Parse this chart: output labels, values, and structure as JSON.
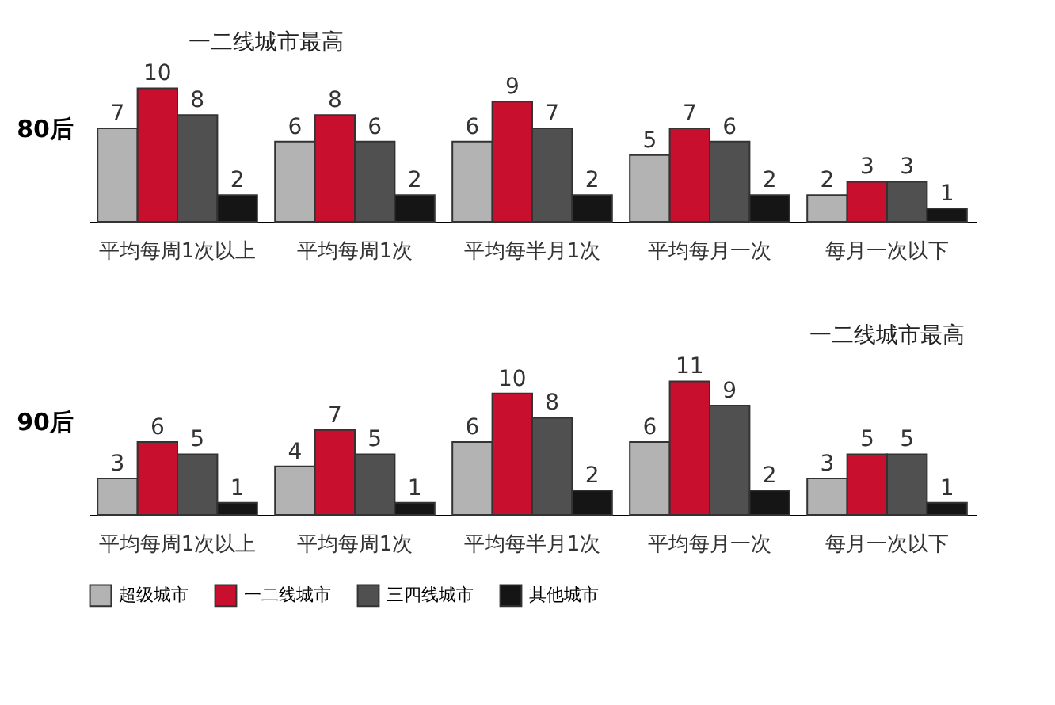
{
  "chart_data": [
    {
      "type": "bar",
      "ylabel": "80后",
      "categories": [
        "平均每周1次以上",
        "平均每周1次",
        "平均每半月1次",
        "平均每月一次",
        "每月一次以下"
      ],
      "series": [
        {
          "color": "#b3b3b3",
          "values": [
            7,
            6,
            6,
            5,
            2
          ]
        },
        {
          "color": "#c8102e",
          "values": [
            10,
            8,
            9,
            7,
            3
          ]
        },
        {
          "color": "#505050",
          "values": [
            8,
            6,
            7,
            6,
            3
          ]
        },
        {
          "color": "#151515",
          "values": [
            2,
            2,
            2,
            2,
            1
          ]
        }
      ],
      "data_labels": true,
      "legend": false,
      "annotations": [
        "一二线城市最高"
      ]
    },
    {
      "type": "bar",
      "ylabel": "90后",
      "categories": [
        "平均每周1次以上",
        "平均每周1次",
        "平均每半月1次",
        "平均每月一次",
        "每月一次以下"
      ],
      "series": [
        {
          "name": "超级城市",
          "color": "#b3b3b3",
          "values": [
            3,
            4,
            6,
            6,
            3
          ]
        },
        {
          "name": "一二线城市",
          "color": "#c8102e",
          "values": [
            6,
            7,
            10,
            11,
            5
          ]
        },
        {
          "name": "三四线城市",
          "color": "#505050",
          "values": [
            5,
            5,
            8,
            9,
            5
          ]
        },
        {
          "name": "其他城市",
          "color": "#151515",
          "values": [
            1,
            1,
            2,
            2,
            1
          ]
        }
      ],
      "data_labels": true,
      "legend": "bottom",
      "annotations": [
        "一二线城市最高"
      ]
    }
  ]
}
